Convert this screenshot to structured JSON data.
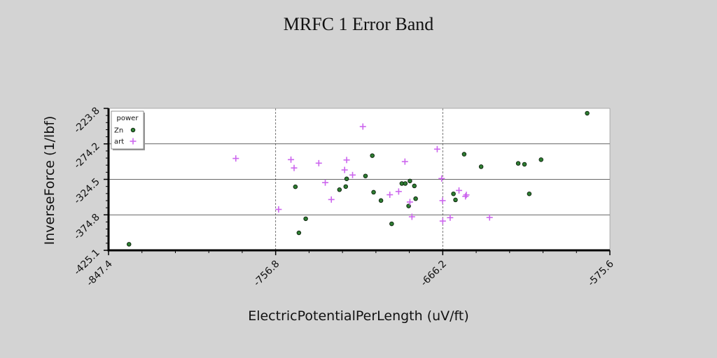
{
  "chart_data": {
    "type": "scatter",
    "title": "MRFC 1 Error Band",
    "xlabel": "ElectricPotentialPerLength (uV/ft)",
    "ylabel": "InverseForce (1/lbf)",
    "xlim": [
      -847.4,
      -575.6
    ],
    "ylim": [
      -425.1,
      -223.8
    ],
    "x_ticks": [
      "-847.4",
      "-756.8",
      "-666.2",
      "-575.6"
    ],
    "y_ticks": [
      "-425.1",
      "-374.8",
      "-324.5",
      "-274.2",
      "-223.8"
    ],
    "x_grid": "vertical dashed at interior ticks",
    "y_grid": "horizontal solid at interior ticks",
    "legend": {
      "title": "power",
      "placement": "top-left"
    },
    "series": [
      {
        "name": "Zn",
        "marker": "circle",
        "color": "#2e7d32",
        "points": [
          [
            -836.3,
            -416.5
          ],
          [
            -746.1,
            -335.0
          ],
          [
            -744.2,
            -400.3
          ],
          [
            -740.5,
            -380.3
          ],
          [
            -722.2,
            -339.1
          ],
          [
            -718.8,
            -334.7
          ],
          [
            -718.3,
            -323.7
          ],
          [
            -708.1,
            -319.7
          ],
          [
            -704.4,
            -290.8
          ],
          [
            -703.7,
            -342.7
          ],
          [
            -699.7,
            -354.5
          ],
          [
            -693.9,
            -387.5
          ],
          [
            -688.4,
            -330.4
          ],
          [
            -686.5,
            -330.4
          ],
          [
            -684.7,
            -362.2
          ],
          [
            -684.0,
            -326.8
          ],
          [
            -681.6,
            -333.8
          ],
          [
            -680.9,
            -351.9
          ],
          [
            -660.4,
            -345.0
          ],
          [
            -659.3,
            -353.6
          ],
          [
            -654.6,
            -288.8
          ],
          [
            -645.4,
            -306.5
          ],
          [
            -625.3,
            -301.8
          ],
          [
            -621.9,
            -303.1
          ],
          [
            -619.3,
            -345.0
          ],
          [
            -612.9,
            -296.5
          ],
          [
            -587.9,
            -230.7
          ]
        ]
      },
      {
        "name": "art",
        "marker": "plus",
        "color": "#cc66ee",
        "points": [
          [
            -778.4,
            -294.8
          ],
          [
            -755.2,
            -367.1
          ],
          [
            -748.5,
            -296.5
          ],
          [
            -746.8,
            -308.3
          ],
          [
            -733.4,
            -301.5
          ],
          [
            -729.9,
            -329.1
          ],
          [
            -726.6,
            -353.1
          ],
          [
            -719.4,
            -311.1
          ],
          [
            -718.3,
            -297.0
          ],
          [
            -715.1,
            -318.3
          ],
          [
            -709.5,
            -249.6
          ],
          [
            -694.9,
            -346.3
          ],
          [
            -690.1,
            -341.7
          ],
          [
            -686.7,
            -299.3
          ],
          [
            -684.0,
            -356.6
          ],
          [
            -682.9,
            -377.5
          ],
          [
            -669.2,
            -281.6
          ],
          [
            -666.8,
            -323.3
          ],
          [
            -666.3,
            -354.6
          ],
          [
            -666.2,
            -383.6
          ],
          [
            -662.2,
            -378.8
          ],
          [
            -657.4,
            -340.2
          ],
          [
            -653.9,
            -348.6
          ],
          [
            -653.4,
            -346.5
          ],
          [
            -640.8,
            -378.5
          ]
        ]
      }
    ]
  }
}
